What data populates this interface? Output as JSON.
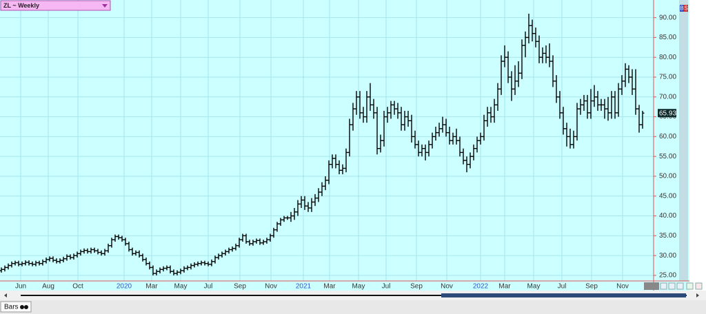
{
  "header": {
    "title": "ZL ~ Weekly"
  },
  "toolbar": {
    "buttons": [
      "B",
      "S"
    ]
  },
  "footer": {
    "tab": "Bars"
  },
  "chart_data": {
    "type": "ohlc",
    "color": "#000000",
    "grid": true,
    "y_axis_side": "right",
    "open": [
      26.2,
      26.5,
      27,
      27.5,
      28,
      28.2,
      27.8,
      28,
      28.3,
      28,
      27.8,
      28.2,
      28,
      28.5,
      29,
      29.3,
      28.8,
      28.5,
      28.8,
      29.2,
      29.8,
      29.5,
      30,
      30.5,
      31,
      31.3,
      31,
      31.5,
      31.2,
      30.8,
      30.5,
      31.2,
      32.5,
      34,
      34.8,
      34.5,
      34,
      33,
      31.5,
      30.5,
      30.8,
      30,
      29,
      28,
      27,
      25.5,
      26,
      26.5,
      26.8,
      27,
      26,
      25.5,
      25.8,
      26.2,
      26.8,
      27,
      27.5,
      27.8,
      28,
      28.2,
      28,
      27.8,
      28.5,
      29.5,
      30,
      30.5,
      31,
      31.5,
      31.8,
      32.5,
      34,
      35,
      33.5,
      33,
      33.5,
      33.8,
      33.2,
      33.5,
      34,
      35,
      36.5,
      38,
      39,
      39.5,
      39.5,
      40,
      41,
      43,
      44,
      42.5,
      42,
      43.5,
      44.5,
      46,
      47.5,
      49,
      53,
      54.5,
      53,
      51.5,
      52,
      56,
      63,
      67,
      70,
      66,
      65,
      70,
      68,
      66,
      57,
      59,
      65,
      66,
      68,
      67,
      66,
      63,
      65,
      64,
      60,
      58,
      56,
      57,
      56,
      58,
      60,
      61,
      62,
      63,
      61,
      59,
      60,
      59,
      56,
      54,
      53,
      55,
      57,
      59,
      60,
      64,
      66,
      65,
      68,
      72,
      79,
      80,
      75,
      72,
      74,
      76,
      83,
      85,
      88,
      86,
      84,
      80,
      81,
      80,
      79,
      74,
      70,
      66,
      62,
      60,
      58,
      60,
      67,
      68,
      69,
      66,
      69,
      70,
      68,
      68,
      67,
      66,
      70,
      66,
      72,
      74,
      77,
      75,
      72,
      67,
      63
    ],
    "high": [
      27,
      27.5,
      28,
      28.5,
      28.7,
      28.7,
      28.5,
      28.8,
      28.8,
      28.5,
      28.7,
      28.7,
      29,
      29.5,
      29.8,
      29.8,
      29.3,
      29.3,
      29.7,
      30.3,
      30.3,
      30.5,
      31,
      31.5,
      31.8,
      31.8,
      32,
      32,
      31.7,
      31.3,
      31.7,
      33,
      34.5,
      35.3,
      35.3,
      35,
      34.5,
      33.5,
      32,
      31.3,
      31.3,
      30.5,
      29.5,
      28.5,
      27.5,
      26.5,
      27,
      27.3,
      27.5,
      27.5,
      26.5,
      26.3,
      26.7,
      27.3,
      27.5,
      28,
      28.3,
      28.5,
      28.7,
      28.7,
      28.5,
      29,
      30,
      30.5,
      31,
      31.5,
      32,
      32.3,
      33,
      34.5,
      35.5,
      35.5,
      34,
      34,
      34.3,
      34.3,
      34,
      34.5,
      35.5,
      37,
      38.5,
      39.5,
      40,
      40,
      41,
      42,
      44,
      45,
      45,
      43.5,
      44.5,
      45.5,
      47,
      48.5,
      50,
      54,
      55.5,
      55.5,
      54,
      53,
      57,
      64.5,
      68.5,
      71.5,
      71.5,
      67.5,
      71.5,
      73.5,
      69.5,
      67.5,
      60.5,
      66.5,
      67.5,
      69,
      69,
      68.5,
      67.5,
      66.5,
      66.5,
      65.5,
      61.5,
      59,
      58,
      58,
      59,
      61,
      62.5,
      63.5,
      65,
      64.5,
      62.5,
      61,
      62,
      60,
      57,
      55,
      56,
      58,
      60,
      61,
      65.5,
      67.5,
      67.5,
      69.5,
      73.5,
      80.5,
      83,
      81.5,
      76.5,
      78,
      79,
      84.5,
      86.5,
      91,
      89.5,
      87.5,
      85.5,
      82.5,
      83,
      83.5,
      80.5,
      75.5,
      71.5,
      67.5,
      63.5,
      62,
      61.5,
      68.5,
      69.5,
      70.5,
      70.5,
      72,
      73,
      71.5,
      69.5,
      69.5,
      70,
      71.5,
      71.5,
      73.5,
      75.5,
      78.5,
      78,
      77,
      77,
      68,
      66.5
    ],
    "low": [
      25.7,
      26,
      26.5,
      27,
      27.5,
      27.3,
      27.3,
      27.5,
      27.5,
      27.3,
      27.3,
      27.5,
      27.5,
      28,
      28.5,
      28.3,
      28,
      28,
      28.3,
      28.7,
      29,
      29,
      29.5,
      30,
      30.5,
      30.5,
      30.5,
      30.7,
      30.3,
      30,
      30,
      30.7,
      32,
      33.5,
      34,
      33.5,
      32.5,
      31,
      30,
      30,
      29.5,
      28.5,
      27.5,
      26.5,
      25,
      25,
      25.5,
      26,
      26.3,
      25.5,
      25,
      25,
      25.3,
      25.7,
      26.3,
      26.5,
      27,
      27.3,
      27.5,
      27.5,
      27.3,
      27.3,
      28,
      29,
      29.5,
      30,
      30.5,
      31,
      31.3,
      32,
      33.5,
      33,
      32.5,
      32.5,
      33,
      32.7,
      32.7,
      33,
      33.5,
      34.5,
      36,
      37.5,
      38.5,
      39,
      38.5,
      39,
      40,
      42,
      41.5,
      41,
      41,
      42.5,
      43.5,
      45,
      46.5,
      48,
      52,
      52,
      50.5,
      50.5,
      51,
      55,
      61.5,
      65.5,
      64.5,
      63.5,
      63.5,
      66.5,
      64.5,
      55.5,
      56,
      57.5,
      63.5,
      64.5,
      65.5,
      64.5,
      61.5,
      61.5,
      62.5,
      58.5,
      57,
      55,
      55,
      54,
      55,
      57,
      59,
      60,
      61,
      60,
      58,
      58,
      58,
      55,
      53,
      51,
      52,
      54,
      56,
      58,
      59,
      62.5,
      63.5,
      63.5,
      66.5,
      70.5,
      77.5,
      73.5,
      69,
      70.5,
      72.5,
      74.5,
      80,
      83.5,
      84,
      82.5,
      78.5,
      78.5,
      78.5,
      77.5,
      72.5,
      68.5,
      64.5,
      60.5,
      57.5,
      57,
      57,
      59,
      65.5,
      66.5,
      64.5,
      64.5,
      67.5,
      66.5,
      66.5,
      64.5,
      64,
      64.5,
      64.5,
      65,
      70.5,
      72.5,
      73.5,
      70.5,
      65.5,
      61,
      62
    ],
    "close": [
      26.5,
      27,
      27.5,
      28,
      28.2,
      27.8,
      28,
      28.3,
      28,
      27.8,
      28.2,
      28,
      28.5,
      29,
      29.3,
      28.8,
      28.5,
      28.8,
      29.2,
      29.8,
      29.5,
      30,
      30.5,
      31,
      31.3,
      31,
      31.5,
      31.2,
      30.8,
      30.5,
      31.2,
      32.5,
      34,
      34.8,
      34.5,
      34,
      33,
      31.5,
      30.5,
      30.8,
      30,
      29,
      28,
      27,
      25.5,
      26,
      26.5,
      26.8,
      27,
      26,
      25.5,
      25.8,
      26.2,
      26.8,
      27,
      27.5,
      27.8,
      28,
      28.2,
      28,
      27.8,
      28.5,
      29.5,
      30,
      30.5,
      31,
      31.5,
      31.8,
      32.5,
      34,
      35,
      33.5,
      33,
      33.5,
      33.8,
      33.2,
      33.5,
      34,
      35,
      36.5,
      38,
      39,
      39.5,
      39.5,
      40,
      41,
      43,
      44,
      42.5,
      42,
      43.5,
      44.5,
      46,
      47.5,
      49,
      53,
      54.5,
      53,
      51.5,
      52,
      56,
      63,
      67,
      70,
      66,
      65,
      70,
      68,
      66,
      57,
      59,
      65,
      66,
      68,
      67,
      66,
      63,
      65,
      64,
      60,
      58,
      56,
      57,
      56,
      58,
      60,
      61,
      62,
      63,
      61,
      59,
      60,
      59,
      56,
      54,
      53,
      55,
      57,
      59,
      60,
      64,
      66,
      65,
      68,
      72,
      79,
      80,
      75,
      72,
      74,
      76,
      83,
      85,
      88,
      86,
      84,
      80,
      81,
      80,
      79,
      74,
      70,
      66,
      62,
      60,
      58,
      60,
      67,
      68,
      69,
      66,
      69,
      70,
      68,
      68,
      67,
      66,
      70,
      66,
      72,
      74,
      77,
      75,
      72,
      67,
      63,
      65.93
    ],
    "xlim": [
      -0.4,
      189.2
    ],
    "xticks": [
      {
        "value": 5.6,
        "label": "Jun"
      },
      {
        "value": 13.6,
        "label": "Aug"
      },
      {
        "value": 22.2,
        "label": "Oct"
      },
      {
        "value": 35.6,
        "label": "2020"
      },
      {
        "value": 43.6,
        "label": "Mar"
      },
      {
        "value": 52,
        "label": "May"
      },
      {
        "value": 60,
        "label": "Jul"
      },
      {
        "value": 69.2,
        "label": "Sep"
      },
      {
        "value": 78.2,
        "label": "Nov"
      },
      {
        "value": 87.6,
        "label": "2021"
      },
      {
        "value": 95.2,
        "label": "Mar"
      },
      {
        "value": 103.6,
        "label": "May"
      },
      {
        "value": 111.6,
        "label": "Jul"
      },
      {
        "value": 120.4,
        "label": "Sep"
      },
      {
        "value": 129.2,
        "label": "Nov"
      },
      {
        "value": 139,
        "label": "2022"
      },
      {
        "value": 146,
        "label": "Mar"
      },
      {
        "value": 154.4,
        "label": "May"
      },
      {
        "value": 162.6,
        "label": "Jul"
      },
      {
        "value": 171.2,
        "label": "Sep"
      },
      {
        "value": 180.2,
        "label": "Nov"
      }
    ],
    "ylim": [
      23.6,
      94.1
    ],
    "yticks": [
      {
        "value": 25,
        "label": "25.00"
      },
      {
        "value": 30,
        "label": "30.00"
      },
      {
        "value": 35,
        "label": "35.00"
      },
      {
        "value": 40,
        "label": "40.00"
      },
      {
        "value": 45,
        "label": "45.00"
      },
      {
        "value": 50,
        "label": "50.00"
      },
      {
        "value": 55,
        "label": "55.00"
      },
      {
        "value": 60,
        "label": "60.00"
      },
      {
        "value": 65,
        "label": "65.00"
      },
      {
        "value": 70,
        "label": "70.00"
      },
      {
        "value": 75,
        "label": "75.00"
      },
      {
        "value": 80,
        "label": "80.00"
      },
      {
        "value": 85,
        "label": "85.00"
      },
      {
        "value": 90,
        "label": "90.00"
      }
    ]
  }
}
